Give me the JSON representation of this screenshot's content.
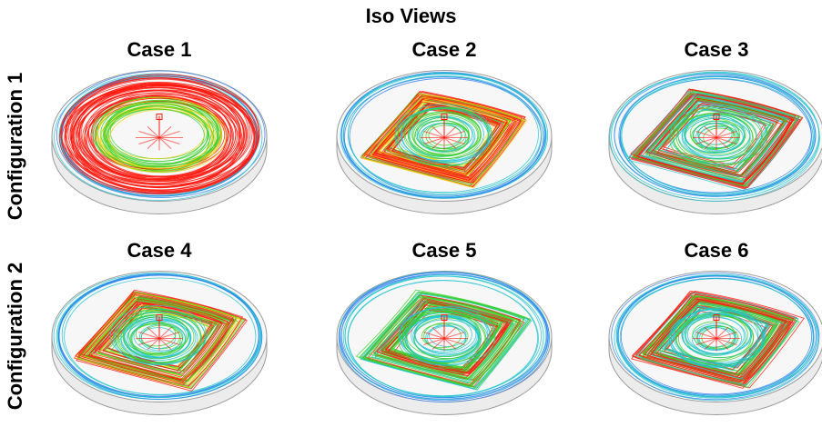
{
  "figure": {
    "title": "Iso Views",
    "rows": [
      {
        "label": "Configuration 1"
      },
      {
        "label": "Configuration 2"
      }
    ],
    "panels": [
      {
        "label": "Case 1",
        "pattern": "swirl-dominant"
      },
      {
        "label": "Case 2",
        "pattern": "square-loop"
      },
      {
        "label": "Case 3",
        "pattern": "square-loop"
      },
      {
        "label": "Case 4",
        "pattern": "square-loop"
      },
      {
        "label": "Case 5",
        "pattern": "square-loop"
      },
      {
        "label": "Case 6",
        "pattern": "square-loop"
      }
    ],
    "colors": {
      "high": "#ff1a0f",
      "mid_high": "#f5d20a",
      "mid": "#39d12c",
      "low": "#22c4cf",
      "lowest": "#2f7df0",
      "vessel_fill": "#ececec",
      "vessel_stroke": "#9a9a9a"
    }
  }
}
